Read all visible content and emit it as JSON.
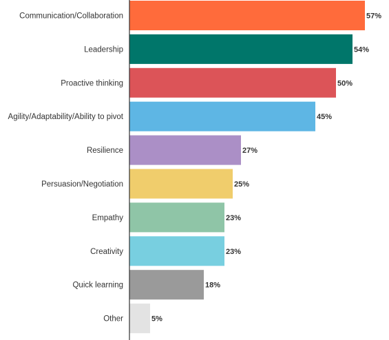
{
  "chart_data": {
    "type": "bar",
    "orientation": "horizontal",
    "categories": [
      "Communication/Collaboration",
      "Leadership",
      "Proactive thinking",
      "Agility/Adaptability/Ability to pivot",
      "Resilience",
      "Persuasion/Negotiation",
      "Empathy",
      "Creativity",
      "Quick learning",
      "Other"
    ],
    "values": [
      57,
      54,
      50,
      45,
      27,
      25,
      23,
      23,
      18,
      5
    ],
    "value_labels": [
      "57%",
      "54%",
      "50%",
      "45%",
      "27%",
      "25%",
      "23%",
      "23%",
      "18%",
      "5%"
    ],
    "colors": [
      "#ff6b3b",
      "#00766a",
      "#dc5458",
      "#5eb6e4",
      "#ab8fc6",
      "#f0cd6c",
      "#8fc5a7",
      "#78cfe0",
      "#9a9a9a",
      "#e3e3e3"
    ],
    "xlim": [
      0,
      60
    ],
    "grid": false,
    "legend": "none"
  }
}
